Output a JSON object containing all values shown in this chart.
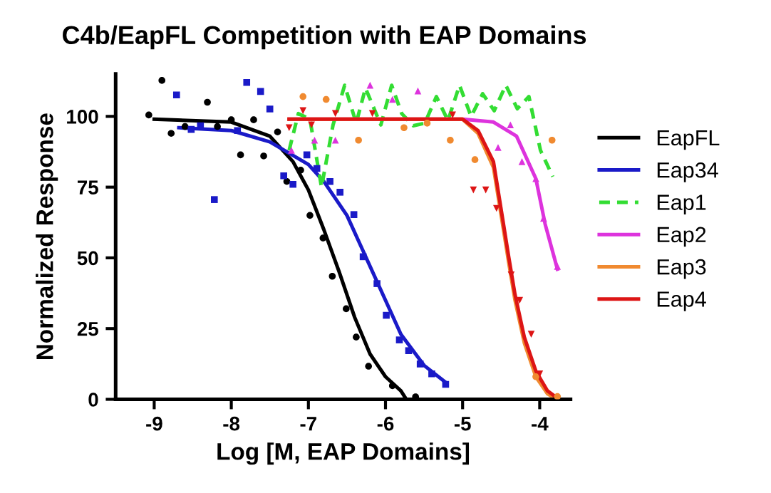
{
  "chart_data": {
    "type": "line",
    "title": "C4b/EapFL Competition with EAP Domains",
    "xlabel": "Log [M, EAP Domains]",
    "ylabel": "Normalized Response",
    "xlim": [
      -9.5,
      -3.6
    ],
    "xticks": [
      {
        "value": -9,
        "label": "-9"
      },
      {
        "value": -8,
        "label": "-8"
      },
      {
        "value": -7,
        "label": "-7"
      },
      {
        "value": -6,
        "label": "-6"
      },
      {
        "value": -5,
        "label": "-5"
      },
      {
        "value": -4,
        "label": "-4"
      }
    ],
    "ylim": [
      0,
      115
    ],
    "yticks": [
      0,
      25,
      50,
      75,
      100
    ],
    "grid": false,
    "legend": "right",
    "marker": "none",
    "line_style": "solid",
    "series": [
      {
        "type": "scatter",
        "marker": "circle",
        "color": "#000000",
        "x": [
          -9.07,
          -8.9,
          -8.78,
          -8.6,
          -8.31,
          -8.18,
          -8.0,
          -7.88,
          -7.71,
          -7.58,
          -7.4,
          -7.28,
          -7.1,
          -6.98,
          -6.81,
          -6.69,
          -6.51,
          -6.38,
          -6.22,
          -5.91,
          -5.61
        ],
        "values": [
          100.5,
          112.7,
          94,
          96.4,
          105,
          96.4,
          98.8,
          86.4,
          98.8,
          86,
          94.5,
          77,
          81,
          65,
          57,
          43.5,
          32,
          22,
          11.7,
          4.8,
          0.9
        ]
      },
      {
        "type": "scatter",
        "marker": "square",
        "color": "#1a1ac8",
        "x": [
          -8.71,
          -8.52,
          -8.4,
          -8.22,
          -7.92,
          -7.8,
          -7.62,
          -7.5,
          -7.32,
          -7.2,
          -7.02,
          -6.89,
          -6.72,
          -6.59,
          -6.41,
          -6.29,
          -6.11,
          -5.99,
          -5.82,
          -5.7,
          -5.55,
          -5.4,
          -5.22
        ],
        "values": [
          107.6,
          95.4,
          96.7,
          70.6,
          95,
          112,
          108.8,
          102.6,
          79,
          76,
          86.4,
          81.6,
          77,
          73.2,
          65.3,
          50.4,
          40.9,
          29.7,
          21,
          17.2,
          12.5,
          9,
          5.3
        ]
      },
      {
        "type": "scatter",
        "marker": "triangle",
        "color": "#dd33dd",
        "x": [
          -7.22,
          -6.92,
          -6.65,
          -6.2,
          -5.91,
          -5.58,
          -4.54,
          -4.38,
          -4.23,
          -4.05,
          -3.95,
          -3.77
        ],
        "values": [
          88,
          91.6,
          91.6,
          111,
          106,
          109,
          89,
          97,
          84,
          78,
          64,
          47
        ]
      },
      {
        "type": "scatter",
        "marker": "circle",
        "color": "#f08a30",
        "x": [
          -7.07,
          -6.77,
          -6.35,
          -5.76,
          -5.46,
          -5.16,
          -4.84,
          -3.84,
          -4.05,
          -3.77
        ],
        "values": [
          107,
          106,
          91.6,
          96,
          97.6,
          91.6,
          84.7,
          91.6,
          8,
          1
        ]
      },
      {
        "type": "scatter",
        "marker": "triangle_down",
        "color": "#dd1515",
        "x": [
          -7.25,
          -7.07,
          -6.96,
          -6.65,
          -6.17,
          -5.13,
          -4.86,
          -4.7,
          -4.56,
          -4.37,
          -4.26,
          -4.11,
          -4.0
        ],
        "values": [
          96,
          102,
          97,
          101,
          101,
          100.5,
          74,
          74,
          67.5,
          44,
          35,
          23,
          9
        ]
      },
      {
        "name": "EapFL",
        "color": "#000000",
        "x": [
          -9,
          -8,
          -7.5,
          -7.2,
          -7,
          -6.8,
          -6.6,
          -6.4,
          -6.2,
          -6,
          -5.8,
          -5.73
        ],
        "values": [
          99,
          98,
          93,
          84,
          74,
          60,
          45,
          29,
          16,
          8,
          3,
          0
        ]
      },
      {
        "name": "Eap34",
        "color": "#1a1ac8",
        "x": [
          -8.68,
          -8,
          -7.5,
          -7,
          -6.8,
          -6.5,
          -6.3,
          -6,
          -5.8,
          -5.5,
          -5.22
        ],
        "values": [
          96,
          95,
          91,
          83,
          77,
          65,
          53,
          35,
          23,
          12,
          6
        ]
      },
      {
        "name": "Eap1",
        "color": "#33dd33",
        "line_style": "dashed",
        "x": [
          -7.25,
          -7.13,
          -6.98,
          -6.83,
          -6.68,
          -6.53,
          -6.38,
          -6.26,
          -6.06,
          -5.92,
          -5.79,
          -5.64,
          -5.49,
          -5.34,
          -5.19,
          -5.04,
          -4.89,
          -4.74,
          -4.59,
          -4.44,
          -4.29,
          -4.14,
          -3.99,
          -3.83
        ],
        "values": [
          88,
          101,
          99,
          75,
          97,
          111,
          97.6,
          110,
          97,
          111,
          101,
          96.7,
          97.6,
          107,
          98.5,
          111,
          100,
          108,
          102,
          111,
          102.7,
          107,
          88,
          78.7
        ]
      },
      {
        "name": "Eap2",
        "color": "#dd33dd",
        "x": [
          -7.25,
          -5,
          -4.6,
          -4.3,
          -4.05,
          -3.93,
          -3.77
        ],
        "values": [
          99,
          99,
          98,
          93,
          78,
          62,
          46
        ]
      },
      {
        "name": "Eap3",
        "color": "#f08a30",
        "x": [
          -7.25,
          -5,
          -4.8,
          -4.6,
          -4.47,
          -4.4,
          -4.32,
          -4.2,
          -4.05,
          -3.9,
          -3.78
        ],
        "values": [
          99,
          99,
          94,
          82,
          60,
          48,
          35,
          20,
          8,
          2,
          0
        ]
      },
      {
        "name": "Eap4",
        "color": "#dd1515",
        "x": [
          -7.25,
          -5,
          -4.8,
          -4.6,
          -4.47,
          -4.4,
          -4.32,
          -4.2,
          -4.05,
          -3.9,
          -3.75
        ],
        "values": [
          99,
          99,
          95,
          84,
          62,
          50,
          37,
          22,
          10,
          3,
          0
        ]
      }
    ]
  }
}
